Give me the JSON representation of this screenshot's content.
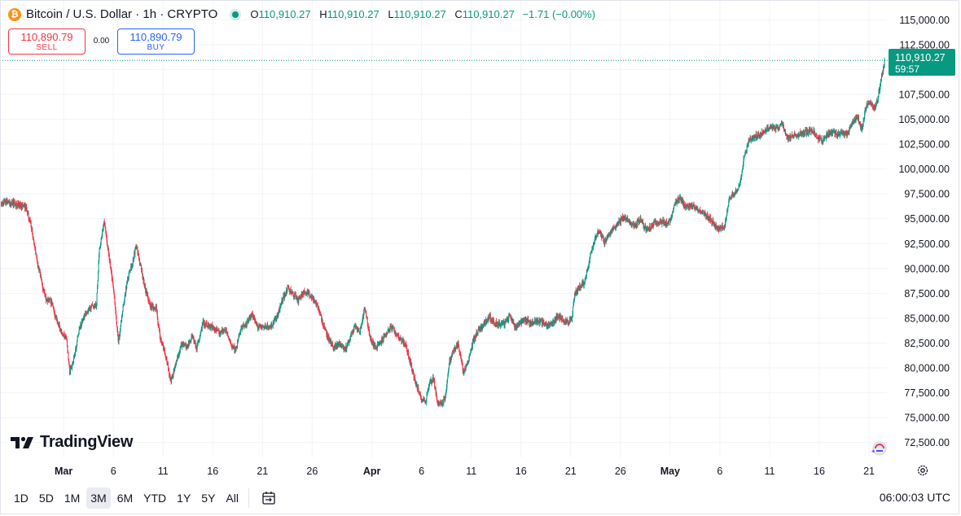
{
  "header": {
    "icon_glyph": "₿",
    "title": "Bitcoin / U.S. Dollar · 1h · CRYPTO",
    "ohlc": {
      "o_label": "O",
      "o": "110,910.27",
      "h_label": "H",
      "h": "110,910.27",
      "l_label": "L",
      "l": "110,910.27",
      "c_label": "C",
      "c": "110,910.27",
      "change": "−1.71 (−0.00%)"
    }
  },
  "trade": {
    "sell_price": "110,890.79",
    "sell_label": "SELL",
    "spread": "0.00",
    "buy_price": "110,890.79",
    "buy_label": "BUY"
  },
  "price_tag": {
    "price": "110,910.27",
    "countdown": "59:57"
  },
  "branding": {
    "logo_text": "TradingView"
  },
  "bottom": {
    "ranges": [
      "1D",
      "5D",
      "1M",
      "3M",
      "6M",
      "YTD",
      "1Y",
      "5Y",
      "All"
    ],
    "active_range": "3M",
    "time": "06:00:03 UTC"
  },
  "colors": {
    "up": "#089981",
    "down": "#f23645",
    "accent": "#2962ff",
    "grid": "#f0f3fa"
  },
  "chart_data": {
    "type": "candlestick",
    "symbol": "BTCUSD",
    "interval": "1h",
    "y_ticks": [
      115000,
      112500,
      110000,
      107500,
      105000,
      102500,
      100000,
      97500,
      95000,
      92500,
      90000,
      87500,
      85000,
      82500,
      80000,
      77500,
      75000,
      72500
    ],
    "y_tick_labels": [
      "115,000.00",
      "112,500.00",
      "110,000.00",
      "107,500.00",
      "105,000.00",
      "102,500.00",
      "100,000.00",
      "97,500.00",
      "95,000.00",
      "92,500.00",
      "90,000.00",
      "87,500.00",
      "85,000.00",
      "82,500.00",
      "80,000.00",
      "77,500.00",
      "75,000.00",
      "72,500.00"
    ],
    "ylim": [
      71000,
      116500
    ],
    "x_labels": [
      "Mar",
      "6",
      "11",
      "16",
      "21",
      "26",
      "Apr",
      "6",
      "11",
      "16",
      "21",
      "26",
      "May",
      "6",
      "11",
      "16",
      "21"
    ],
    "x_label_day_index": [
      0,
      5,
      10,
      15,
      20,
      25,
      31,
      36,
      41,
      46,
      51,
      56,
      61,
      66,
      71,
      76,
      81
    ],
    "x_range_days": [
      -6.4,
      82.8
    ],
    "last_price": 110910.27,
    "price_path": [
      [
        -6.4,
        96500
      ],
      [
        -5.5,
        96700
      ],
      [
        -4.5,
        96400
      ],
      [
        -3.8,
        96100
      ],
      [
        -3.3,
        94500
      ],
      [
        -2.7,
        91000
      ],
      [
        -2.2,
        88500
      ],
      [
        -1.8,
        87000
      ],
      [
        -1.2,
        86500
      ],
      [
        -0.8,
        85200
      ],
      [
        -0.2,
        83500
      ],
      [
        0.3,
        82800
      ],
      [
        0.6,
        79500
      ],
      [
        1.0,
        80800
      ],
      [
        1.6,
        84000
      ],
      [
        2.2,
        85500
      ],
      [
        2.8,
        86100
      ],
      [
        3.3,
        86400
      ],
      [
        3.6,
        92000
      ],
      [
        4.1,
        94700
      ],
      [
        4.6,
        91000
      ],
      [
        5.0,
        88000
      ],
      [
        5.5,
        82500
      ],
      [
        5.9,
        85500
      ],
      [
        6.4,
        88800
      ],
      [
        6.9,
        90500
      ],
      [
        7.3,
        92300
      ],
      [
        7.8,
        90000
      ],
      [
        8.2,
        88000
      ],
      [
        8.7,
        86300
      ],
      [
        9.3,
        86000
      ],
      [
        9.7,
        83000
      ],
      [
        10.3,
        81000
      ],
      [
        10.8,
        78500
      ],
      [
        11.3,
        80600
      ],
      [
        11.9,
        82500
      ],
      [
        12.4,
        82000
      ],
      [
        12.9,
        83300
      ],
      [
        13.4,
        82000
      ],
      [
        14.0,
        84500
      ],
      [
        14.6,
        84200
      ],
      [
        15.2,
        84000
      ],
      [
        15.7,
        83500
      ],
      [
        16.3,
        83800
      ],
      [
        16.8,
        82300
      ],
      [
        17.3,
        81800
      ],
      [
        17.9,
        84200
      ],
      [
        18.4,
        84400
      ],
      [
        18.9,
        85500
      ],
      [
        19.4,
        84200
      ],
      [
        19.9,
        84000
      ],
      [
        20.4,
        84200
      ],
      [
        21.0,
        84300
      ],
      [
        21.5,
        85300
      ],
      [
        22.0,
        86800
      ],
      [
        22.5,
        88000
      ],
      [
        23.0,
        87500
      ],
      [
        23.6,
        86800
      ],
      [
        24.1,
        87600
      ],
      [
        24.6,
        87400
      ],
      [
        25.2,
        86800
      ],
      [
        25.7,
        85800
      ],
      [
        26.2,
        84000
      ],
      [
        26.7,
        82800
      ],
      [
        27.2,
        82000
      ],
      [
        27.8,
        82500
      ],
      [
        28.3,
        81800
      ],
      [
        28.8,
        83000
      ],
      [
        29.3,
        84200
      ],
      [
        29.8,
        83600
      ],
      [
        30.3,
        86200
      ],
      [
        30.8,
        83000
      ],
      [
        31.4,
        82000
      ],
      [
        31.9,
        82600
      ],
      [
        32.4,
        83400
      ],
      [
        32.9,
        84100
      ],
      [
        33.4,
        83500
      ],
      [
        33.9,
        82900
      ],
      [
        34.4,
        82300
      ],
      [
        34.9,
        80400
      ],
      [
        35.4,
        78500
      ],
      [
        35.9,
        77000
      ],
      [
        36.4,
        76600
      ],
      [
        36.8,
        78500
      ],
      [
        37.2,
        79000
      ],
      [
        37.6,
        76500
      ],
      [
        38.0,
        76300
      ],
      [
        38.4,
        77200
      ],
      [
        38.8,
        80600
      ],
      [
        39.2,
        81700
      ],
      [
        39.7,
        82400
      ],
      [
        40.2,
        79500
      ],
      [
        40.7,
        80600
      ],
      [
        41.2,
        82800
      ],
      [
        41.7,
        83800
      ],
      [
        42.2,
        84300
      ],
      [
        42.8,
        85200
      ],
      [
        43.3,
        84500
      ],
      [
        43.9,
        84400
      ],
      [
        44.4,
        84500
      ],
      [
        44.9,
        85300
      ],
      [
        45.4,
        84100
      ],
      [
        45.9,
        84600
      ],
      [
        46.4,
        84900
      ],
      [
        46.9,
        84500
      ],
      [
        47.5,
        84700
      ],
      [
        48.0,
        84700
      ],
      [
        48.5,
        84300
      ],
      [
        49.1,
        84400
      ],
      [
        49.6,
        85100
      ],
      [
        50.1,
        85000
      ],
      [
        50.6,
        84600
      ],
      [
        51.1,
        84800
      ],
      [
        51.4,
        87400
      ],
      [
        51.9,
        88200
      ],
      [
        52.4,
        88600
      ],
      [
        52.9,
        91000
      ],
      [
        53.4,
        93000
      ],
      [
        53.9,
        93800
      ],
      [
        54.4,
        92600
      ],
      [
        54.9,
        93400
      ],
      [
        55.4,
        94200
      ],
      [
        55.9,
        94700
      ],
      [
        56.4,
        95200
      ],
      [
        57.0,
        94500
      ],
      [
        57.5,
        94300
      ],
      [
        58.0,
        95000
      ],
      [
        58.5,
        94000
      ],
      [
        59.0,
        94100
      ],
      [
        59.5,
        94600
      ],
      [
        60.0,
        94800
      ],
      [
        60.5,
        94500
      ],
      [
        61.0,
        94700
      ],
      [
        61.5,
        96500
      ],
      [
        62.0,
        97000
      ],
      [
        62.5,
        96300
      ],
      [
        63.0,
        96200
      ],
      [
        63.5,
        96200
      ],
      [
        64.0,
        95800
      ],
      [
        64.5,
        95400
      ],
      [
        65.0,
        95000
      ],
      [
        65.5,
        94300
      ],
      [
        66.0,
        93900
      ],
      [
        66.5,
        94300
      ],
      [
        67.0,
        97200
      ],
      [
        67.5,
        97600
      ],
      [
        68.0,
        98500
      ],
      [
        68.5,
        101500
      ],
      [
        69.0,
        103000
      ],
      [
        69.5,
        103200
      ],
      [
        70.0,
        103500
      ],
      [
        70.6,
        103900
      ],
      [
        71.2,
        104300
      ],
      [
        71.8,
        104100
      ],
      [
        72.3,
        104600
      ],
      [
        72.8,
        103000
      ],
      [
        73.3,
        103300
      ],
      [
        73.8,
        103500
      ],
      [
        74.3,
        103600
      ],
      [
        74.8,
        103700
      ],
      [
        75.3,
        103900
      ],
      [
        75.8,
        103200
      ],
      [
        76.3,
        102800
      ],
      [
        76.8,
        103500
      ],
      [
        77.3,
        103800
      ],
      [
        77.8,
        103400
      ],
      [
        78.3,
        103700
      ],
      [
        78.8,
        103500
      ],
      [
        79.3,
        104600
      ],
      [
        79.8,
        105300
      ],
      [
        80.3,
        103900
      ],
      [
        80.7,
        106300
      ],
      [
        81.1,
        106800
      ],
      [
        81.5,
        106100
      ],
      [
        81.9,
        107100
      ],
      [
        82.3,
        109500
      ],
      [
        82.6,
        110910
      ]
    ]
  }
}
